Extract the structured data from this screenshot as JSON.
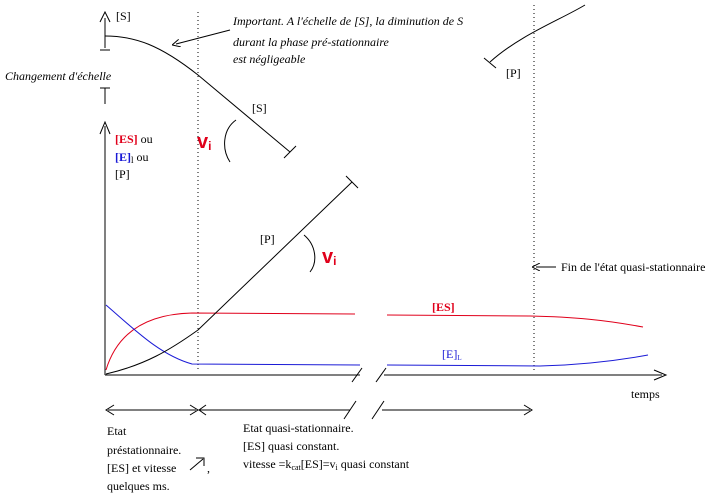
{
  "top_axis_label": "[S]",
  "annotation_important": [
    "Important. A l'échelle de [S], la diminution de S",
    "durant la phase pré-stationnaire",
    "est négligeable"
  ],
  "scale_change_label": "Changement d'échelle",
  "substrate_curve_label": "[S]",
  "top_right_curve_label": "[P]",
  "y_axis_label": {
    "es": "[ES]",
    "ou1": " ou",
    "e": "[E]",
    "e_sub": "l",
    "ou2": " ou",
    "p": "[P]"
  },
  "vi_upper": {
    "v": "v",
    "sub": "i"
  },
  "vi_lower": {
    "v": "v",
    "sub": "i"
  },
  "product_label": "[P]",
  "end_quasi_label": "Fin de l'état quasi-stationnaire",
  "es_label": "[ES]",
  "el_label": {
    "e": "[E]",
    "sub": "L"
  },
  "x_axis_label": "temps",
  "phase1_text": [
    "Etat",
    "préstationnaire.",
    "[ES] et vitesse",
    ",",
    "quelques ms."
  ],
  "phase2_text": {
    "line1": "Etat quasi-stationnaire.",
    "line2": "[ES] quasi constant.",
    "line3_a": "vitesse =k",
    "line3_sub": "cat",
    "line3_b": "[ES]=v",
    "line3_sub2": "i",
    "line3_c": " quasi constant"
  },
  "colors": {
    "es": "#e0001b",
    "e": "#1a1ad6",
    "black": "#000000"
  }
}
